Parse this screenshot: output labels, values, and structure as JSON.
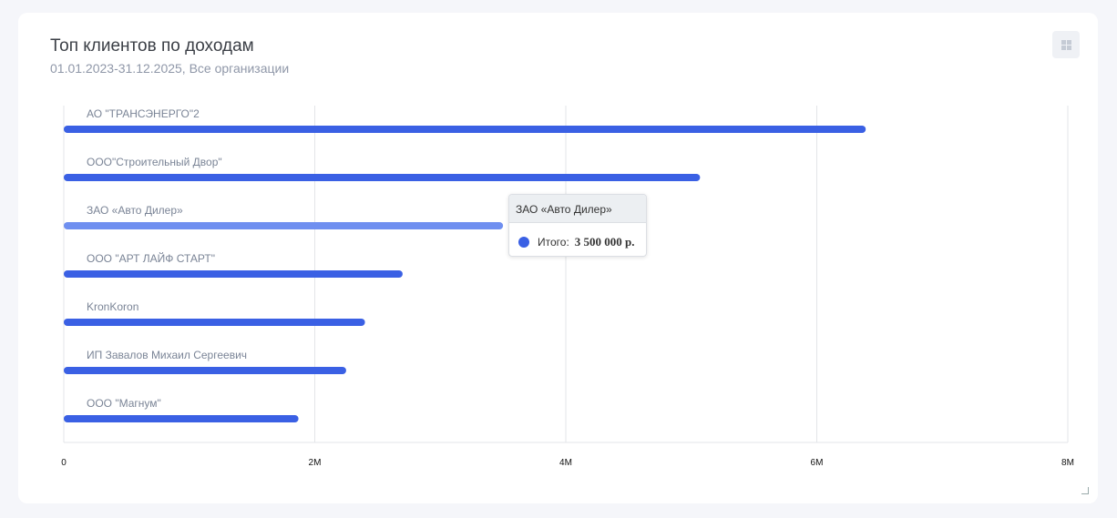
{
  "header": {
    "title": "Топ клиентов по доходам",
    "subtitle": "01.01.2023-31.12.2025, Все организации"
  },
  "icons": {
    "menu": "grid-icon",
    "resize": "resize-handle-icon"
  },
  "colors": {
    "bar": "#3a60e4",
    "bar_hover": "#6f8ff0"
  },
  "chart_data": {
    "type": "bar",
    "orientation": "horizontal",
    "categories": [
      "АО \"ТРАНСЭНЕРГО\"2",
      "ООО\"Строительный Двор\"",
      "ЗАО «Авто Дилер»",
      "ООО \"АРТ ЛАЙФ СТАРТ\"",
      "KronKoron",
      "ИП Завалов Михаил Сергеевич",
      "ООО \"Магнум\""
    ],
    "values": [
      6390000,
      5070000,
      3500000,
      2700000,
      2400000,
      2250000,
      1870000
    ],
    "xlim": [
      0,
      8000000
    ],
    "x_ticks": [
      0,
      2000000,
      4000000,
      6000000,
      8000000
    ],
    "x_tick_labels": [
      "0",
      "2M",
      "4M",
      "6M",
      "8M"
    ],
    "grid": true,
    "highlighted_index": 2
  },
  "tooltip": {
    "title": "ЗАО «Авто Дилер»",
    "label": "Итого:",
    "value": "3 500 000 р."
  }
}
